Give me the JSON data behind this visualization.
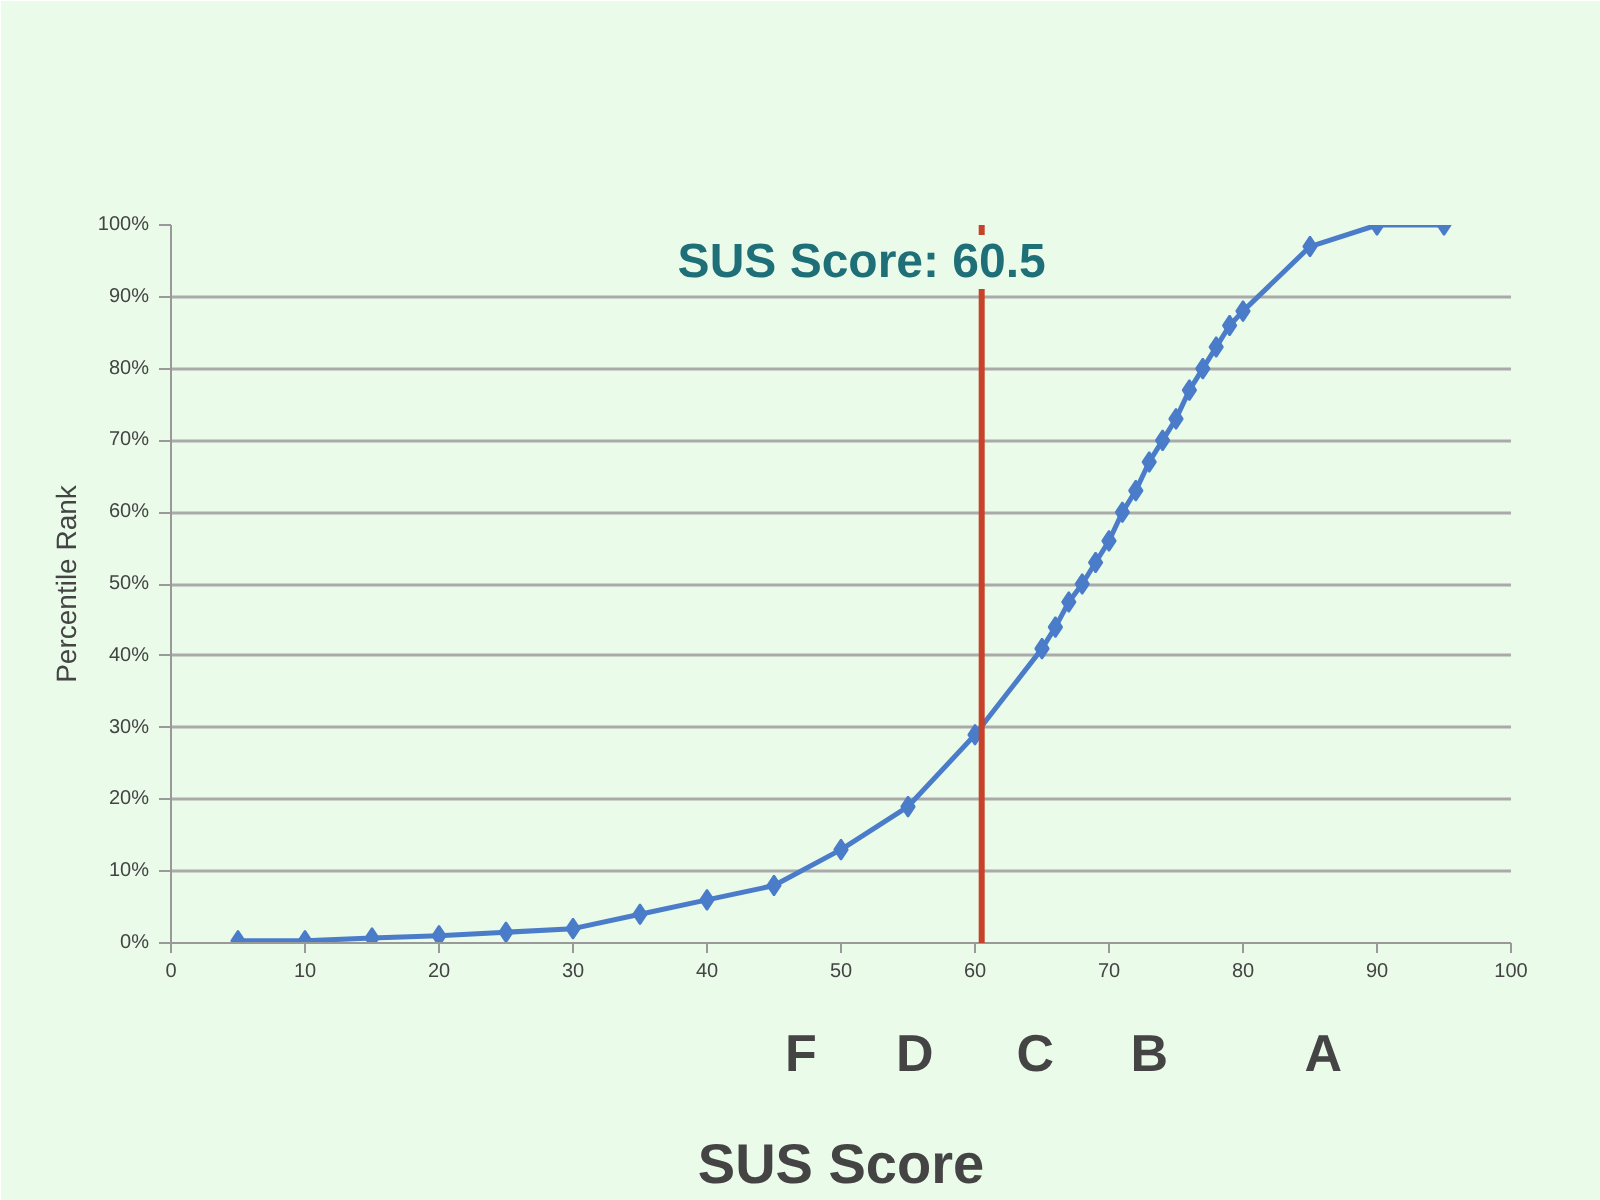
{
  "chart_data": {
    "type": "line",
    "xlabel": "SUS Score",
    "ylabel": "Percentile Rank",
    "x": [
      5,
      10,
      15,
      20,
      25,
      30,
      35,
      40,
      45,
      50,
      55,
      60,
      65,
      66,
      67,
      68,
      69,
      70,
      71,
      72,
      73,
      74,
      75,
      76,
      77,
      78,
      79,
      80,
      85,
      90,
      95
    ],
    "series": [
      {
        "color": "#4a7cc9",
        "values": [
          0.3,
          0.3,
          0.7,
          1,
          1.5,
          2,
          4,
          6,
          8,
          13,
          19,
          29,
          41,
          44,
          47.5,
          50,
          53,
          56,
          60,
          63,
          67,
          70,
          73,
          77,
          80,
          83,
          86,
          88,
          97,
          100,
          100
        ]
      }
    ],
    "xlim": [
      0,
      100
    ],
    "xticks": [
      0,
      10,
      20,
      30,
      40,
      50,
      60,
      70,
      80,
      90,
      100
    ],
    "ylim": [
      0,
      100
    ],
    "yticks": [
      {
        "value": 0,
        "label": "0%"
      },
      {
        "value": 10,
        "label": "10%"
      },
      {
        "value": 20,
        "label": "20%"
      },
      {
        "value": 30,
        "label": "30%"
      },
      {
        "value": 40,
        "label": "40%"
      },
      {
        "value": 50,
        "label": "50%"
      },
      {
        "value": 60,
        "label": "60%"
      },
      {
        "value": 70,
        "label": "70%"
      },
      {
        "value": 80,
        "label": "80%"
      },
      {
        "value": 90,
        "label": "90%"
      },
      {
        "value": 100,
        "label": "100%"
      }
    ],
    "ref_lines": [
      {
        "axis": "x",
        "value": 60.5,
        "label": "SUS Score: 60.5",
        "color": "#c8422a"
      }
    ],
    "annotations": [
      "F",
      "D",
      "C",
      "B",
      "A"
    ],
    "grid": "y",
    "marker": "diamond",
    "line_style": "solid"
  }
}
